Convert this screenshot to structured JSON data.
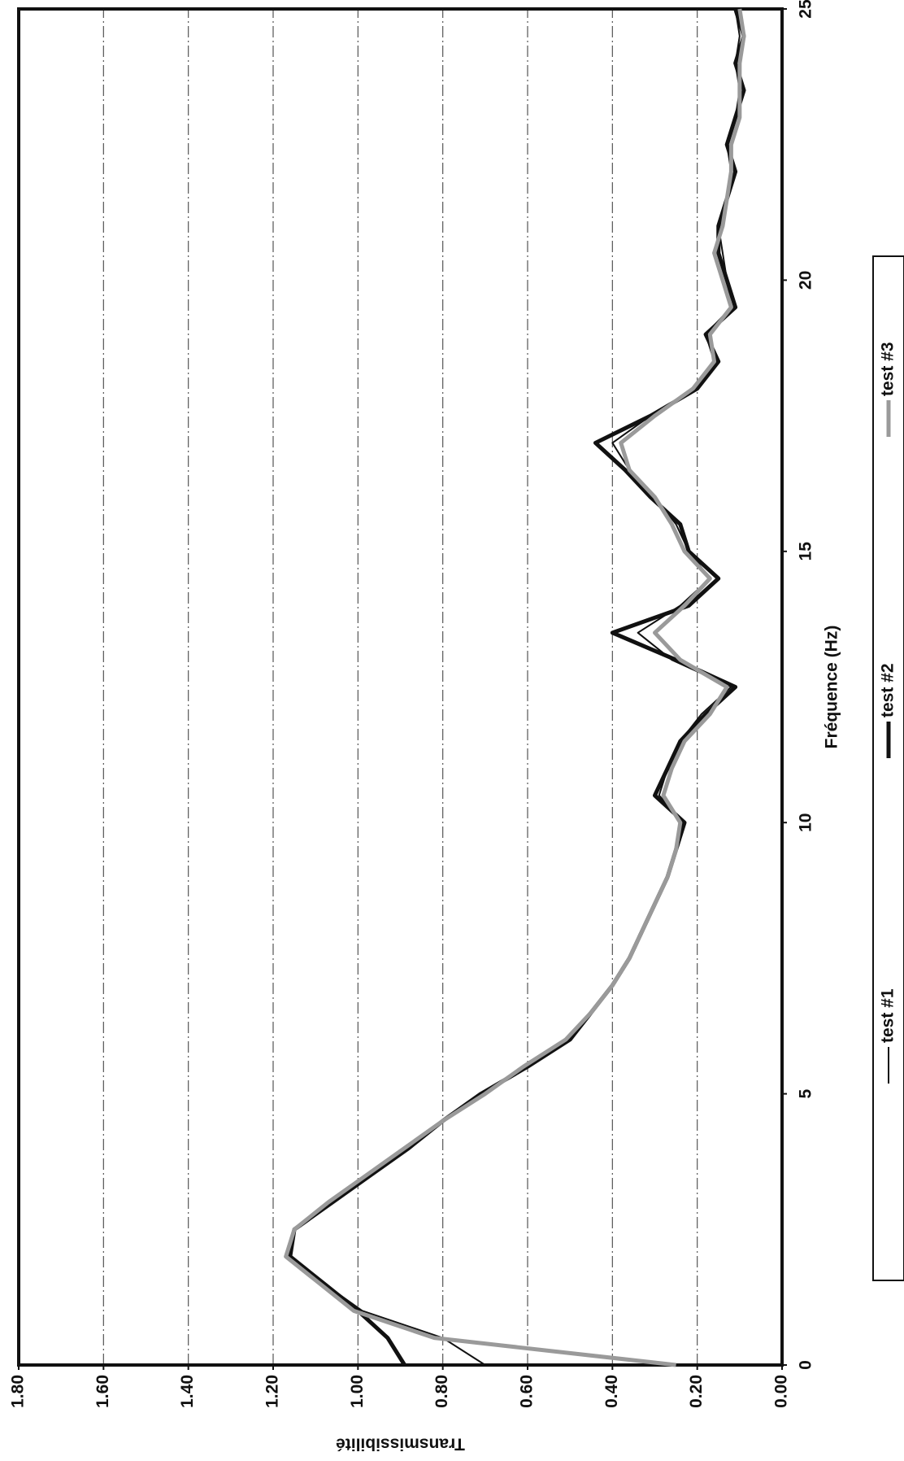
{
  "chart_data": {
    "type": "line",
    "x_label": "Fréquence (Hz)",
    "y_label": "Transmissibilité",
    "x": [
      0,
      0.5,
      1,
      1.5,
      2,
      2.5,
      3,
      3.5,
      4,
      4.5,
      5,
      5.5,
      6,
      6.5,
      7,
      7.5,
      8,
      8.5,
      9,
      9.5,
      10,
      10.5,
      11,
      11.5,
      12,
      12.5,
      13,
      13.5,
      14,
      14.5,
      15,
      15.5,
      16,
      16.5,
      17,
      17.5,
      18,
      18.5,
      19,
      19.5,
      20,
      20.5,
      21,
      21.5,
      22,
      22.5,
      23,
      23.5,
      24,
      24.5,
      25
    ],
    "series": [
      {
        "name": "test #1",
        "color": "#111111",
        "width": 2,
        "values": [
          0.7,
          0.8,
          0.99,
          1.08,
          1.16,
          1.15,
          1.06,
          0.97,
          0.88,
          0.8,
          0.71,
          0.6,
          0.5,
          0.45,
          0.4,
          0.36,
          0.33,
          0.3,
          0.27,
          0.25,
          0.23,
          0.29,
          0.27,
          0.24,
          0.19,
          0.12,
          0.26,
          0.34,
          0.24,
          0.17,
          0.22,
          0.25,
          0.3,
          0.36,
          0.4,
          0.31,
          0.2,
          0.16,
          0.18,
          0.12,
          0.13,
          0.14,
          0.15,
          0.13,
          0.12,
          0.13,
          0.11,
          0.1,
          0.11,
          0.1,
          0.11
        ]
      },
      {
        "name": "test #2",
        "color": "#111111",
        "width": 5,
        "values": [
          0.89,
          0.93,
          1.0,
          1.08,
          1.16,
          1.15,
          1.06,
          0.97,
          0.88,
          0.8,
          0.71,
          0.6,
          0.5,
          0.45,
          0.4,
          0.36,
          0.33,
          0.3,
          0.27,
          0.25,
          0.23,
          0.3,
          0.27,
          0.24,
          0.18,
          0.11,
          0.25,
          0.4,
          0.22,
          0.15,
          0.22,
          0.24,
          0.31,
          0.37,
          0.44,
          0.31,
          0.2,
          0.15,
          0.18,
          0.11,
          0.13,
          0.15,
          0.15,
          0.13,
          0.11,
          0.13,
          0.11,
          0.09,
          0.11,
          0.09,
          0.11
        ]
      },
      {
        "name": "test #3",
        "color": "#9a9a9a",
        "width": 5,
        "values": [
          0.25,
          0.82,
          1.01,
          1.09,
          1.17,
          1.15,
          1.07,
          0.98,
          0.89,
          0.8,
          0.7,
          0.61,
          0.51,
          0.45,
          0.4,
          0.36,
          0.33,
          0.3,
          0.27,
          0.25,
          0.24,
          0.28,
          0.26,
          0.23,
          0.17,
          0.13,
          0.24,
          0.3,
          0.23,
          0.17,
          0.23,
          0.26,
          0.3,
          0.36,
          0.38,
          0.3,
          0.21,
          0.16,
          0.17,
          0.12,
          0.14,
          0.16,
          0.14,
          0.13,
          0.12,
          0.12,
          0.1,
          0.1,
          0.1,
          0.09,
          0.1
        ]
      }
    ],
    "xlim": [
      0,
      25
    ],
    "xticks": [
      0,
      5,
      10,
      15,
      20,
      25
    ],
    "ylim": [
      0,
      1.8
    ],
    "yticks": [
      {
        "value": 0,
        "label": "0.00"
      },
      {
        "value": 0.2,
        "label": "0.20"
      },
      {
        "value": 0.4,
        "label": "0.40"
      },
      {
        "value": 0.6,
        "label": "0.60"
      },
      {
        "value": 0.8,
        "label": "0.80"
      },
      {
        "value": 1.0,
        "label": "1.00"
      },
      {
        "value": 1.2,
        "label": "1.20"
      },
      {
        "value": 1.4,
        "label": "1.40"
      },
      {
        "value": 1.6,
        "label": "1.60"
      },
      {
        "value": 1.8,
        "label": "1.80"
      }
    ],
    "grid": true,
    "legend": "bottom",
    "rotation": -90
  }
}
